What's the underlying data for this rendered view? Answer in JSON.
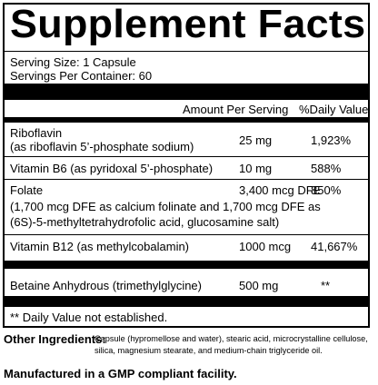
{
  "panel": {
    "title": "Supplement Facts",
    "serving_size": "Serving Size: 1 Capsule",
    "servings_per_container": "Servings Per Container: 60",
    "header_amount": "Amount Per Serving",
    "header_dv": "%Daily Value",
    "rows": [
      {
        "name_line1": "Riboflavin",
        "name_line2": "(as riboflavin 5’-phosphate sodium)",
        "amount": "25 mg",
        "dv": "1,923%"
      },
      {
        "name_line1": "Vitamin B6 (as pyridoxal 5’-phosphate)",
        "amount": "10 mg",
        "dv": "588%"
      },
      {
        "name_line1": "Folate",
        "name_line2": "(1,700 mcg DFE as calcium folinate and 1,700 mcg DFE as",
        "name_line3": "(6S)-5-methyltetrahydrofolic acid, glucosamine salt)",
        "amount": "3,400 mcg DFE",
        "dv": "850%"
      },
      {
        "name_line1": "Vitamin B12 (as methylcobalamin)",
        "amount": "1000 mcg",
        "dv": "41,667%"
      },
      {
        "name_line1": "Betaine Anhydrous (trimethylglycine)",
        "amount": "500 mg",
        "dv": "**"
      }
    ],
    "footnote": "** Daily Value not established."
  },
  "other_ingredients": {
    "label": "Other Ingredients:",
    "text": "Capsule (hypromellose and water), stearic acid, microcrystalline cellulose, silica, magnesium stearate, and medium-chain triglyceride oil."
  },
  "manufacturing_note": "Manufactured in a GMP compliant facility."
}
